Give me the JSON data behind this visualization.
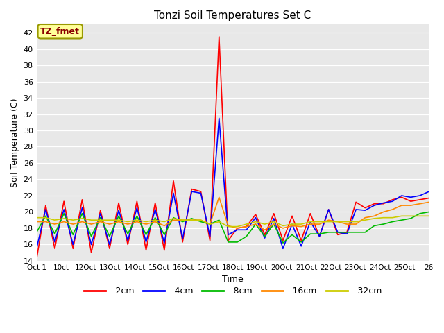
{
  "title": "Tonzi Soil Temperatures Set C",
  "xlabel": "Time",
  "ylabel": "Soil Temperature (C)",
  "ylim": [
    14,
    43
  ],
  "yticks": [
    14,
    16,
    18,
    20,
    22,
    24,
    26,
    28,
    30,
    32,
    34,
    36,
    38,
    40,
    42
  ],
  "fig_bg": "#ffffff",
  "plot_bg": "#e8e8e8",
  "annotation_text": "TZ_fmet",
  "annotation_color": "#8b0000",
  "annotation_bg": "#ffff99",
  "annotation_edge": "#999900",
  "series_order": [
    "-2cm",
    "-4cm",
    "-8cm",
    "-16cm",
    "-32cm"
  ],
  "series": {
    "-2cm": {
      "color": "#ff0000",
      "lw": 1.2
    },
    "-4cm": {
      "color": "#0000ff",
      "lw": 1.2
    },
    "-8cm": {
      "color": "#00bb00",
      "lw": 1.2
    },
    "-16cm": {
      "color": "#ff8800",
      "lw": 1.2
    },
    "-32cm": {
      "color": "#cccc00",
      "lw": 1.2
    }
  },
  "xtick_labels": [
    "Oct 1",
    "10ct",
    "12Oct",
    "13Oct",
    "14Oct",
    "15Oct",
    "16Oct",
    "17Oct",
    "18Oct",
    "19Oct",
    "20Oct",
    "21Oct",
    "22Oct",
    "23Oct",
    "24Oct",
    "25Oct",
    "26"
  ],
  "data": {
    "-2cm": [
      14.2,
      20.8,
      15.5,
      21.3,
      15.5,
      21.5,
      15.0,
      20.2,
      15.5,
      21.1,
      16.0,
      21.3,
      15.3,
      21.1,
      15.3,
      23.8,
      16.3,
      22.8,
      22.5,
      16.5,
      41.5,
      16.5,
      18.0,
      18.2,
      19.7,
      17.2,
      19.8,
      16.5,
      19.5,
      16.5,
      19.8,
      17.0,
      20.3,
      17.2,
      17.5,
      21.2,
      20.5,
      21.0,
      21.0,
      21.5,
      21.8,
      21.3,
      21.5,
      21.7
    ],
    "-4cm": [
      15.5,
      20.3,
      16.3,
      20.3,
      16.0,
      20.5,
      16.0,
      19.8,
      16.0,
      20.2,
      16.5,
      20.5,
      16.3,
      20.3,
      16.2,
      22.3,
      16.7,
      22.5,
      22.3,
      17.0,
      31.5,
      17.2,
      17.8,
      17.8,
      19.3,
      16.8,
      19.2,
      15.5,
      18.5,
      15.8,
      18.8,
      17.0,
      20.3,
      17.5,
      17.3,
      20.3,
      20.2,
      20.8,
      21.1,
      21.3,
      22.0,
      21.8,
      22.0,
      22.5
    ],
    "-8cm": [
      17.5,
      19.5,
      17.3,
      19.8,
      17.2,
      19.8,
      17.0,
      19.3,
      17.0,
      19.5,
      17.3,
      19.5,
      17.2,
      19.3,
      17.2,
      19.3,
      18.8,
      19.2,
      18.8,
      18.5,
      19.0,
      16.3,
      16.3,
      17.0,
      18.5,
      17.0,
      18.5,
      16.2,
      17.2,
      16.3,
      17.3,
      17.3,
      17.5,
      17.5,
      17.5,
      17.5,
      17.5,
      18.3,
      18.5,
      18.8,
      19.0,
      19.2,
      19.8,
      20.0
    ],
    "-16cm": [
      18.8,
      18.8,
      18.5,
      18.8,
      18.5,
      18.8,
      18.5,
      18.8,
      18.5,
      18.8,
      18.5,
      18.8,
      18.5,
      18.8,
      18.3,
      19.0,
      19.0,
      19.0,
      19.0,
      18.5,
      21.8,
      18.3,
      18.0,
      18.2,
      18.5,
      17.8,
      18.5,
      18.0,
      18.3,
      18.2,
      18.5,
      18.5,
      19.0,
      18.8,
      18.5,
      18.5,
      19.3,
      19.5,
      20.0,
      20.3,
      20.8,
      20.8,
      21.0,
      21.2
    ],
    "-32cm": [
      19.3,
      19.3,
      19.0,
      19.2,
      19.0,
      19.2,
      19.0,
      19.0,
      19.0,
      19.0,
      18.8,
      19.0,
      18.8,
      19.0,
      18.8,
      19.2,
      19.0,
      19.0,
      19.0,
      18.5,
      18.8,
      18.2,
      18.2,
      18.5,
      18.8,
      18.5,
      18.8,
      18.3,
      18.5,
      18.5,
      18.8,
      18.8,
      18.8,
      18.8,
      18.8,
      18.8,
      19.0,
      19.2,
      19.3,
      19.3,
      19.5,
      19.5,
      19.5,
      19.5
    ]
  }
}
